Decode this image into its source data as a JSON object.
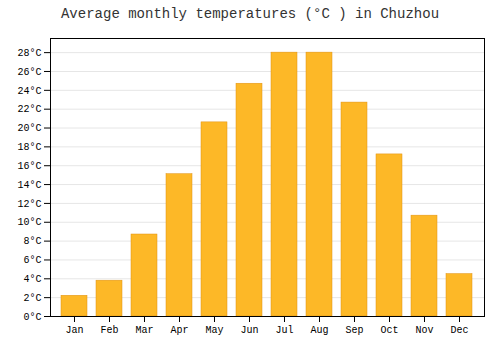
{
  "chart_data": {
    "type": "bar",
    "title": "Average monthly temperatures (°C ) in Chuzhou",
    "categories": [
      "Jan",
      "Feb",
      "Mar",
      "Apr",
      "May",
      "Jun",
      "Jul",
      "Aug",
      "Sep",
      "Oct",
      "Nov",
      "Dec"
    ],
    "values": [
      2.2,
      3.8,
      8.7,
      15.1,
      20.6,
      24.7,
      28.0,
      28.0,
      22.7,
      17.2,
      10.7,
      4.5
    ],
    "color": "#FDB827",
    "ylim": [
      0,
      29.5
    ],
    "yticks": [
      {
        "value": 0,
        "label": "0°C"
      },
      {
        "value": 2,
        "label": "2°C"
      },
      {
        "value": 4,
        "label": "4°C"
      },
      {
        "value": 6,
        "label": "6°C"
      },
      {
        "value": 8,
        "label": "8°C"
      },
      {
        "value": 10,
        "label": "10°C"
      },
      {
        "value": 12,
        "label": "12°C"
      },
      {
        "value": 14,
        "label": "14°C"
      },
      {
        "value": 16,
        "label": "16°C"
      },
      {
        "value": 18,
        "label": "18°C"
      },
      {
        "value": 20,
        "label": "20°C"
      },
      {
        "value": 22,
        "label": "22°C"
      },
      {
        "value": 24,
        "label": "24°C"
      },
      {
        "value": 26,
        "label": "26°C"
      },
      {
        "value": 28,
        "label": "28°C"
      }
    ],
    "grid": true
  }
}
